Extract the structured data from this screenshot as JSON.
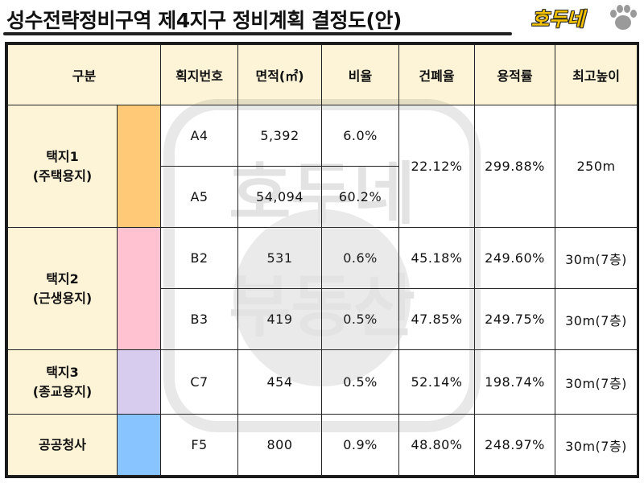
{
  "title": "성수전략정비구역 제4지구 정비계획 결정도(안)",
  "logo_text": "호두네",
  "watermark": {
    "line1": "호두네",
    "line2": "부동산"
  },
  "headers": {
    "category": "구분",
    "lot": "획지번호",
    "area": "면적(㎡)",
    "ratio": "비율",
    "coverage": "건폐율",
    "far": "용적률",
    "height": "최고높이"
  },
  "groups": [
    {
      "line1": "택지1",
      "line2": "(주택용지)",
      "color": "#ffc978"
    },
    {
      "line1": "택지2",
      "line2": "(근생용지)",
      "color": "#ffc2d1"
    },
    {
      "line1": "택지3",
      "line2": "(종교용지)",
      "color": "#d8ccee"
    },
    {
      "line1": "공공청사",
      "line2": "",
      "color": "#88c4ff"
    }
  ],
  "rows": [
    {
      "lot": "A4",
      "area": "5,392",
      "ratio": "6.0%"
    },
    {
      "lot": "A5",
      "area": "54,094",
      "ratio": "60.2%"
    },
    {
      "lot": "B2",
      "area": "531",
      "ratio": "0.6%",
      "coverage": "45.18%",
      "far": "249.60%",
      "height": "30m(7층)"
    },
    {
      "lot": "B3",
      "area": "419",
      "ratio": "0.5%",
      "coverage": "47.85%",
      "far": "249.75%",
      "height": "30m(7층)"
    },
    {
      "lot": "C7",
      "area": "454",
      "ratio": "0.5%",
      "coverage": "52.14%",
      "far": "198.74%",
      "height": "30m(7층)"
    },
    {
      "lot": "F5",
      "area": "800",
      "ratio": "0.9%",
      "coverage": "48.80%",
      "far": "248.97%",
      "height": "30m(7층)"
    }
  ],
  "group1_shared": {
    "coverage": "22.12%",
    "far": "299.88%",
    "height": "250m"
  }
}
